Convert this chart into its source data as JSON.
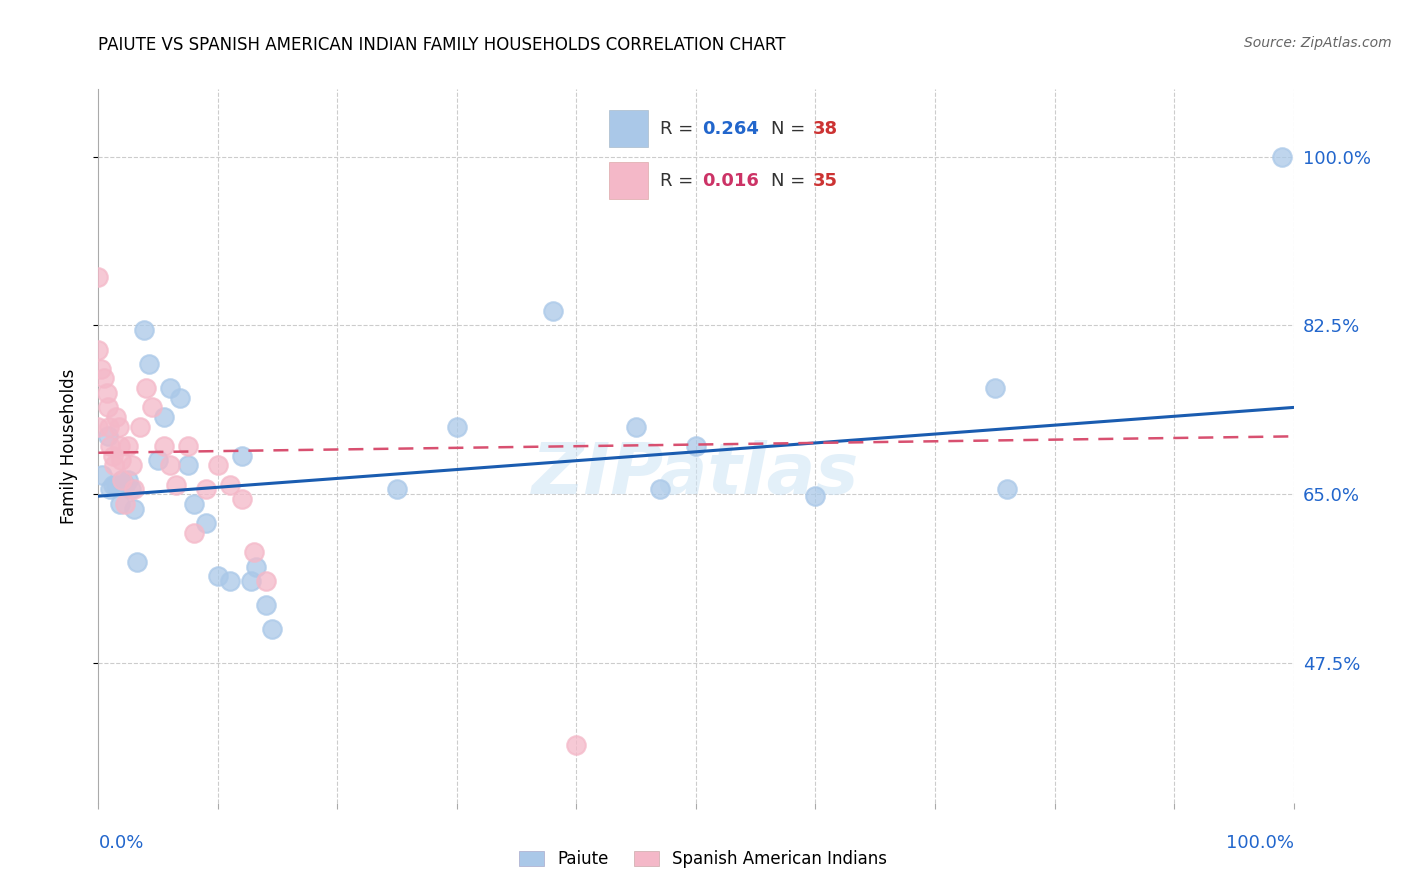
{
  "title": "PAIUTE VS SPANISH AMERICAN INDIAN FAMILY HOUSEHOLDS CORRELATION CHART",
  "source": "Source: ZipAtlas.com",
  "ylabel": "Family Households",
  "ytick_labels": [
    "47.5%",
    "65.0%",
    "82.5%",
    "100.0%"
  ],
  "ytick_values": [
    0.475,
    0.65,
    0.825,
    1.0
  ],
  "xlim": [
    0.0,
    1.0
  ],
  "ylim": [
    0.33,
    1.07
  ],
  "legend_r1": "R = 0.264",
  "legend_n1": "N = 38",
  "legend_r2": "R = 0.016",
  "legend_n2": "N = 35",
  "paiute_color": "#aac8e8",
  "spanish_color": "#f4b8c8",
  "paiute_line_color": "#1a5cb0",
  "spanish_line_color": "#d85070",
  "background_color": "#ffffff",
  "watermark": "ZIPatlas",
  "paiute_x": [
    0.003,
    0.008,
    0.01,
    0.012,
    0.015,
    0.018,
    0.02,
    0.022,
    0.025,
    0.027,
    0.03,
    0.032,
    0.038,
    0.042,
    0.05,
    0.055,
    0.06,
    0.068,
    0.075,
    0.08,
    0.09,
    0.1,
    0.11,
    0.12,
    0.128,
    0.132,
    0.14,
    0.145,
    0.25,
    0.3,
    0.38,
    0.45,
    0.47,
    0.5,
    0.6,
    0.75,
    0.76,
    0.99
  ],
  "paiute_y": [
    0.67,
    0.71,
    0.655,
    0.66,
    0.66,
    0.64,
    0.665,
    0.66,
    0.665,
    0.655,
    0.635,
    0.58,
    0.82,
    0.785,
    0.685,
    0.73,
    0.76,
    0.75,
    0.68,
    0.64,
    0.62,
    0.565,
    0.56,
    0.69,
    0.56,
    0.575,
    0.535,
    0.51,
    0.655,
    0.72,
    0.84,
    0.72,
    0.655,
    0.7,
    0.648,
    0.76,
    0.655,
    1.0
  ],
  "spanish_x": [
    0.0,
    0.0,
    0.0,
    0.002,
    0.005,
    0.007,
    0.008,
    0.009,
    0.01,
    0.012,
    0.013,
    0.015,
    0.017,
    0.018,
    0.019,
    0.02,
    0.022,
    0.025,
    0.028,
    0.03,
    0.035,
    0.04,
    0.045,
    0.055,
    0.06,
    0.065,
    0.075,
    0.08,
    0.09,
    0.1,
    0.11,
    0.12,
    0.13,
    0.14,
    0.4
  ],
  "spanish_y": [
    0.875,
    0.8,
    0.72,
    0.78,
    0.77,
    0.755,
    0.74,
    0.72,
    0.7,
    0.69,
    0.68,
    0.73,
    0.72,
    0.7,
    0.685,
    0.665,
    0.64,
    0.7,
    0.68,
    0.655,
    0.72,
    0.76,
    0.74,
    0.7,
    0.68,
    0.66,
    0.7,
    0.61,
    0.655,
    0.68,
    0.66,
    0.645,
    0.59,
    0.56,
    0.39
  ],
  "paiute_line_x": [
    0.0,
    1.0
  ],
  "paiute_line_y": [
    0.648,
    0.74
  ],
  "spanish_line_x": [
    0.0,
    1.0
  ],
  "spanish_line_y": [
    0.693,
    0.71
  ]
}
